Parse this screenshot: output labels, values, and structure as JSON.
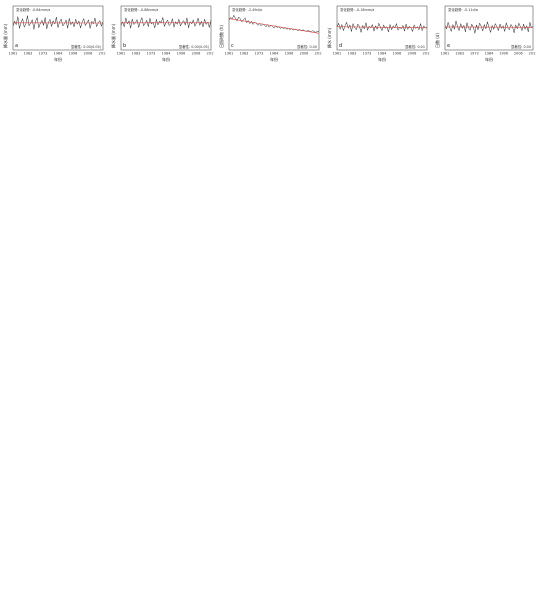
{
  "figure": {
    "x_axis_label": "年份",
    "colors": {
      "series_black": "#222222",
      "series_red": "#d9443f",
      "trend": "#d9443f",
      "conf": "#888888"
    }
  },
  "chart_data": [
    {
      "id": "r1c1",
      "type": "line",
      "panel_label": "a",
      "x_ticks": [
        "1961",
        "1983",
        "1973",
        "1984",
        "1996",
        "2006",
        "2017"
      ],
      "annotation_top": "变化趋势: -0.84mm/a",
      "annotation_bottom": "显著性: 0.00(0.05)",
      "y_label": "降水量 (mm)",
      "ylim": [
        0,
        2000
      ],
      "values": [
        1080,
        1310,
        1150,
        1520,
        980,
        1260,
        1420,
        1040,
        1190,
        1560,
        1100,
        1230,
        1380,
        940,
        1300,
        1470,
        1010,
        1210,
        1350,
        1120,
        1480,
        960,
        1250,
        1390,
        1070,
        1330,
        1180,
        1500,
        1020,
        1270,
        1410,
        1090,
        1200,
        1360,
        990,
        1440,
        1150,
        1280,
        1050,
        1400,
        1170,
        1320,
        1000,
        1260,
        1430,
        1110,
        1240,
        1370,
        980,
        1300,
        1190,
        1450,
        1060,
        1220,
        1340,
        1080,
        1280
      ]
    },
    {
      "id": "r1c2",
      "type": "line",
      "panel_label": "b",
      "x_ticks": [
        "1961",
        "1983",
        "1973",
        "1984",
        "1996",
        "2006",
        "2017"
      ],
      "annotation_top": "变化趋势: -0.88mm/a",
      "annotation_bottom": "显著性: 0.00(0.05)",
      "y_label": "降水量 (mm)",
      "ylim": [
        0,
        2000
      ],
      "values": [
        1120,
        1280,
        1050,
        1460,
        1190,
        1330,
        990,
        1410,
        1160,
        1240,
        1380,
        1020,
        1300,
        1470,
        1100,
        1210,
        1350,
        1060,
        1440,
        1180,
        1270,
        1000,
        1390,
        1140,
        1320,
        1230,
        1480,
        1070,
        1260,
        1360,
        1110,
        1200,
        1420,
        1040,
        1290,
        1170,
        1400,
        1090,
        1250,
        1340,
        1130,
        1460,
        1010,
        1280,
        1190,
        1370,
        1080,
        1230,
        1450,
        1120,
        1310,
        1050,
        1400,
        1160,
        1270,
        1020,
        1350
      ]
    },
    {
      "id": "r1c3",
      "type": "line",
      "panel_label": "c",
      "x_ticks": [
        "1961",
        "1983",
        "1973",
        "1984",
        "1996",
        "2006",
        "2017"
      ],
      "annotation_top": "变化趋势: -2.49d/a",
      "annotation_bottom": "显著性: 0.00",
      "y_label": "日照时数 (h)",
      "ylim": [
        0,
        1
      ],
      "values": [
        0.68,
        0.74,
        0.7,
        0.79,
        0.72,
        0.66,
        0.75,
        0.71,
        0.64,
        0.69,
        0.73,
        0.62,
        0.67,
        0.6,
        0.65,
        0.58,
        0.63,
        0.61,
        0.56,
        0.6,
        0.55,
        0.59,
        0.57,
        0.53,
        0.58,
        0.52,
        0.56,
        0.54,
        0.5,
        0.55,
        0.51,
        0.53,
        0.49,
        0.52,
        0.48,
        0.51,
        0.47,
        0.5,
        0.46,
        0.49,
        0.45,
        0.48,
        0.46,
        0.44,
        0.47,
        0.43,
        0.46,
        0.44,
        0.42,
        0.45,
        0.43,
        0.41,
        0.44,
        0.42,
        0.4,
        0.43,
        0.41
      ]
    },
    {
      "id": "r1c4",
      "type": "line",
      "panel_label": "d",
      "x_ticks": [
        "1961",
        "1983",
        "1973",
        "1984",
        "1996",
        "2006",
        "2017"
      ],
      "annotation_top": "变化趋势: -0.18mm/a",
      "annotation_bottom": "显著性: 0.01",
      "y_label": "降水 (mm)",
      "ylim": [
        0,
        1
      ],
      "values": [
        0.52,
        0.61,
        0.47,
        0.58,
        0.44,
        0.55,
        0.63,
        0.49,
        0.57,
        0.42,
        0.6,
        0.51,
        0.46,
        0.59,
        0.53,
        0.4,
        0.56,
        0.48,
        0.62,
        0.45,
        0.54,
        0.5,
        0.58,
        0.43,
        0.55,
        0.47,
        0.61,
        0.52,
        0.44,
        0.57,
        0.49,
        0.53,
        0.41,
        0.58,
        0.46,
        0.55,
        0.5,
        0.6,
        0.45,
        0.52,
        0.48,
        0.56,
        0.43,
        0.59,
        0.47,
        0.54,
        0.51,
        0.42,
        0.57,
        0.49,
        0.53,
        0.46,
        0.6,
        0.44,
        0.55,
        0.5,
        0.52
      ]
    },
    {
      "id": "r1c5",
      "type": "line",
      "panel_label": "e",
      "x_ticks": [
        "1961",
        "1983",
        "1973",
        "1984",
        "1996",
        "2006",
        "2017"
      ],
      "annotation_top": "变化趋势: -0.11d/a",
      "annotation_bottom": "显著性: 0.00",
      "y_label": "日数 (d)",
      "ylim": [
        0,
        1
      ],
      "values": [
        0.55,
        0.48,
        0.63,
        0.51,
        0.42,
        0.58,
        0.47,
        0.66,
        0.53,
        0.44,
        0.6,
        0.49,
        0.56,
        0.41,
        0.62,
        0.5,
        0.45,
        0.59,
        0.52,
        0.38,
        0.57,
        0.46,
        0.61,
        0.54,
        0.43,
        0.58,
        0.48,
        0.64,
        0.51,
        0.4,
        0.56,
        0.47,
        0.6,
        0.53,
        0.44,
        0.59,
        0.49,
        0.55,
        0.42,
        0.62,
        0.5,
        0.46,
        0.58,
        0.52,
        0.39,
        0.57,
        0.48,
        0.61,
        0.53,
        0.44,
        0.59,
        0.47,
        0.55,
        0.41,
        0.63,
        0.5,
        0.54
      ]
    }
  ]
}
